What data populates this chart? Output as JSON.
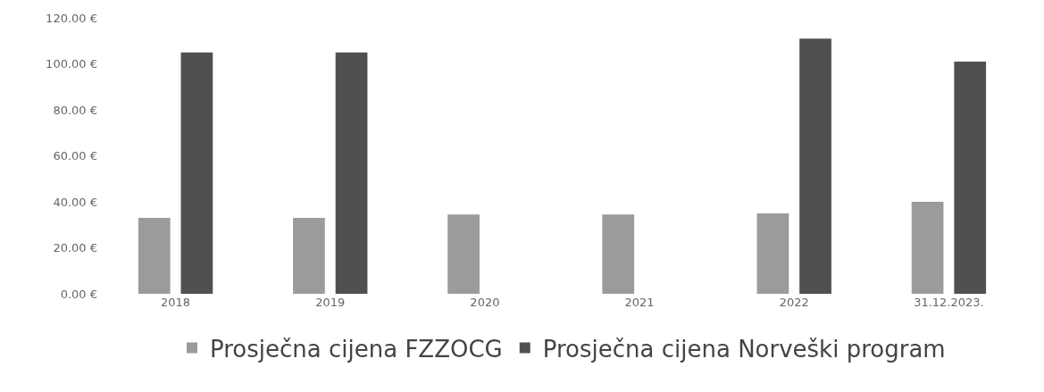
{
  "chart_data": {
    "type": "bar",
    "categories": [
      "2018",
      "2019",
      "2020",
      "2021",
      "2022",
      "31.12.2023."
    ],
    "series": [
      {
        "name": "Prosječna cijena FZZOCG",
        "color": "#9b9a9c",
        "values": [
          33,
          33,
          34.5,
          34.5,
          35,
          40
        ]
      },
      {
        "name": "Prosječna cijena Norveški program",
        "color": "#505050",
        "values": [
          105,
          105,
          null,
          null,
          111,
          101
        ]
      }
    ],
    "ylim": [
      0,
      120
    ],
    "yticks": [
      {
        "value": 0,
        "label": "0.00 €"
      },
      {
        "value": 20,
        "label": "20.00 €"
      },
      {
        "value": 40,
        "label": "40.00 €"
      },
      {
        "value": 60,
        "label": "60.00 €"
      },
      {
        "value": 80,
        "label": "80.00 €"
      },
      {
        "value": 100,
        "label": "100.00 €"
      },
      {
        "value": 120,
        "label": "120.00 €"
      }
    ],
    "grid": false,
    "legend": "bottom"
  }
}
